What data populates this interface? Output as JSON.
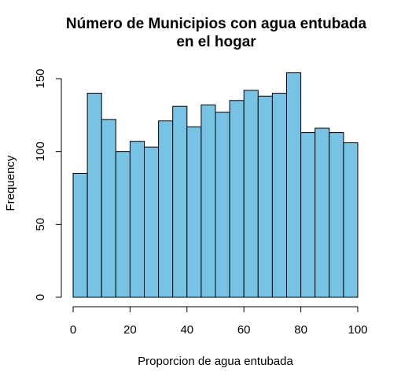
{
  "chart_data": {
    "type": "bar",
    "title_line1": "Número de Municipios con agua entubada",
    "title_line2": "en el hogar",
    "xlabel": "Proporcion de agua entubada",
    "ylabel": "Frequency",
    "bin_width": 5,
    "x": [
      0,
      5,
      10,
      15,
      20,
      25,
      30,
      35,
      40,
      45,
      50,
      55,
      60,
      65,
      70,
      75,
      80,
      85,
      90,
      95
    ],
    "values": [
      85,
      140,
      122,
      100,
      107,
      103,
      121,
      131,
      117,
      132,
      127,
      135,
      142,
      138,
      140,
      154,
      113,
      116,
      113,
      106
    ],
    "xlim": [
      0,
      100
    ],
    "ylim": [
      0,
      154
    ],
    "x_ticks": [
      "0",
      "20",
      "40",
      "60",
      "80",
      "100"
    ],
    "y_ticks": [
      "0",
      "50",
      "100",
      "150"
    ],
    "bar_color": "#77c3e6",
    "grid": false
  }
}
